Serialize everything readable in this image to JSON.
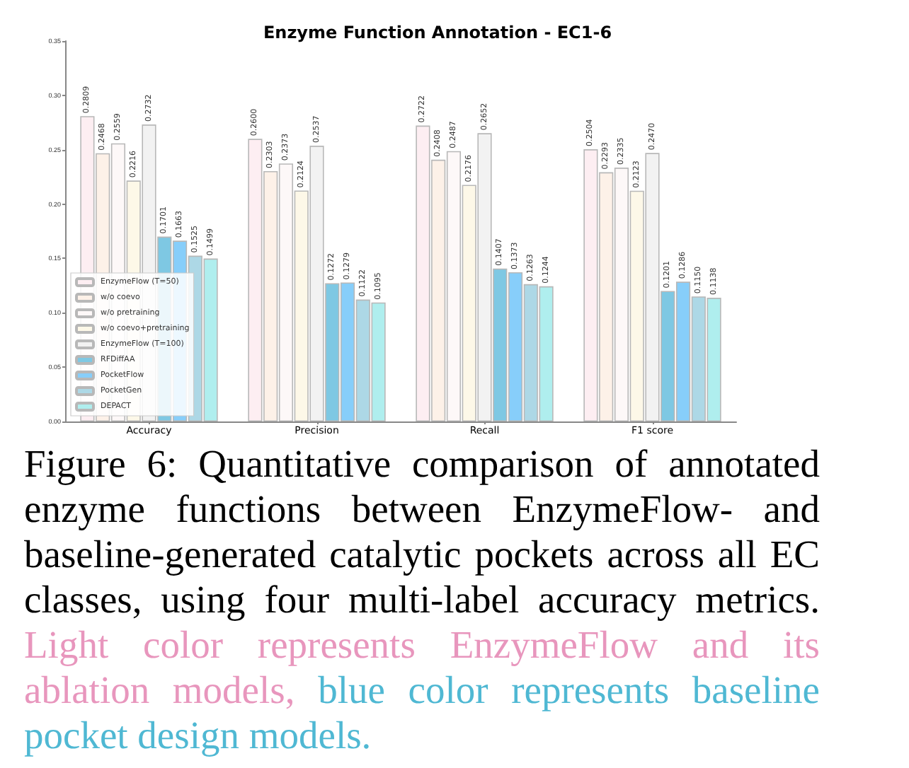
{
  "chart_data": {
    "type": "bar",
    "title": "Enzyme Function Annotation - EC1-6",
    "categories": [
      "Accuracy",
      "Precision",
      "Recall",
      "F1 score"
    ],
    "series": [
      {
        "name": "EnzymeFlow (T=50)",
        "color": "#fdeef2",
        "values": [
          0.2809,
          0.26,
          0.2722,
          0.2504
        ],
        "value_labels": [
          "0.2809",
          "0.2600",
          "0.2722",
          "0.2504"
        ]
      },
      {
        "name": "w/o coevo",
        "color": "#fdf1e8",
        "values": [
          0.2468,
          0.2303,
          0.2408,
          0.2293
        ],
        "value_labels": [
          "0.2468",
          "0.2303",
          "0.2408",
          "0.2293"
        ]
      },
      {
        "name": "w/o pretraining",
        "color": "#fdf8f8",
        "values": [
          0.2559,
          0.2373,
          0.2487,
          0.2335
        ],
        "value_labels": [
          "0.2559",
          "0.2373",
          "0.2487",
          "0.2335"
        ]
      },
      {
        "name": "w/o coevo+pretraining",
        "color": "#fdf8e8",
        "values": [
          0.2216,
          0.2124,
          0.2176,
          0.2123
        ],
        "value_labels": [
          "0.2216",
          "0.2124",
          "0.2176",
          "0.2123"
        ]
      },
      {
        "name": "EnzymeFlow (T=100)",
        "color": "#f2f2f2",
        "values": [
          0.2732,
          0.2537,
          0.2652,
          0.247
        ],
        "value_labels": [
          "0.2732",
          "0.2537",
          "0.2652",
          "0.2470"
        ]
      },
      {
        "name": "RFDiffAA",
        "color": "#7ec8e3",
        "values": [
          0.1701,
          0.1272,
          0.1407,
          0.1201
        ],
        "value_labels": [
          "0.1701",
          "0.1272",
          "0.1407",
          "0.1201"
        ]
      },
      {
        "name": "PocketFlow",
        "color": "#87cefa",
        "values": [
          0.1663,
          0.1279,
          0.1373,
          0.1286
        ],
        "value_labels": [
          "0.1663",
          "0.1279",
          "0.1373",
          "0.1286"
        ]
      },
      {
        "name": "PocketGen",
        "color": "#add8e6",
        "values": [
          0.1525,
          0.1122,
          0.1263,
          0.115
        ],
        "value_labels": [
          "0.1525",
          "0.1122",
          "0.1263",
          "0.1150"
        ]
      },
      {
        "name": "DEPACT",
        "color": "#afeeee",
        "values": [
          0.1499,
          0.1095,
          0.1244,
          0.1138
        ],
        "value_labels": [
          "0.1499",
          "0.1095",
          "0.1244",
          "0.1138"
        ]
      }
    ],
    "ylim": [
      0,
      0.35
    ],
    "yticks": [
      {
        "value": 0,
        "label": "0.00"
      },
      0.05,
      {
        "value": 0.1,
        "label": "0.10"
      },
      0.15,
      {
        "value": 0.2,
        "label": "0.20"
      },
      0.25,
      {
        "value": 0.3,
        "label": "0.30"
      },
      0.35
    ],
    "grid": false,
    "legend": "bottom left",
    "annotations": [
      "Figure 6: Quantitative comparison of annotated enzyme functions between EnzymeFlow- and baseline-generated catalytic pockets across all EC classes, using four multi-label accuracy metrics.",
      "Light color represents EnzymeFlow and its ablation models,",
      "blue color represents baseline pocket design models."
    ]
  }
}
